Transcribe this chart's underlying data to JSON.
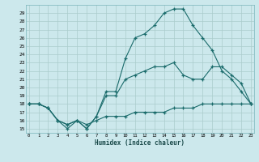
{
  "title": "",
  "xlabel": "Humidex (Indice chaleur)",
  "bg_color": "#cce8ec",
  "grid_color": "#aacccc",
  "line_color": "#1a6b6b",
  "line1_x": [
    0,
    1,
    2,
    3,
    4,
    5,
    6,
    7,
    8,
    9,
    10,
    11,
    12,
    13,
    14,
    15,
    16,
    17,
    18,
    19,
    20,
    21,
    22,
    23
  ],
  "line1_y": [
    18,
    18,
    17.5,
    16,
    15,
    16,
    15,
    16.5,
    19.5,
    19.5,
    23.5,
    26,
    26.5,
    27.5,
    29,
    29.5,
    29.5,
    27.5,
    26,
    24.5,
    22,
    21,
    19.5,
    18
  ],
  "line2_x": [
    0,
    1,
    2,
    3,
    4,
    5,
    6,
    7,
    8,
    9,
    10,
    11,
    12,
    13,
    14,
    15,
    16,
    17,
    18,
    19,
    20,
    21,
    22,
    23
  ],
  "line2_y": [
    18,
    18,
    17.5,
    16,
    15.5,
    16,
    15.5,
    16,
    16.5,
    16.5,
    16.5,
    17,
    17,
    17,
    17,
    17.5,
    17.5,
    17.5,
    18,
    18,
    18,
    18,
    18,
    18
  ],
  "line3_x": [
    0,
    1,
    2,
    3,
    4,
    5,
    6,
    7,
    8,
    9,
    10,
    11,
    12,
    13,
    14,
    15,
    16,
    17,
    18,
    19,
    20,
    21,
    22,
    23
  ],
  "line3_y": [
    18,
    18,
    17.5,
    16,
    15.5,
    16,
    15,
    16.5,
    19,
    19,
    21,
    21.5,
    22,
    22.5,
    22.5,
    23,
    21.5,
    21,
    21,
    22.5,
    22.5,
    21.5,
    20.5,
    18
  ],
  "xlim": [
    -0.3,
    23.3
  ],
  "ylim": [
    14.5,
    30.0
  ],
  "yticks": [
    15,
    16,
    17,
    18,
    19,
    20,
    21,
    22,
    23,
    24,
    25,
    26,
    27,
    28,
    29
  ],
  "xticks": [
    0,
    1,
    2,
    3,
    4,
    5,
    6,
    7,
    8,
    9,
    10,
    11,
    12,
    13,
    14,
    15,
    16,
    17,
    18,
    19,
    20,
    21,
    22,
    23
  ]
}
